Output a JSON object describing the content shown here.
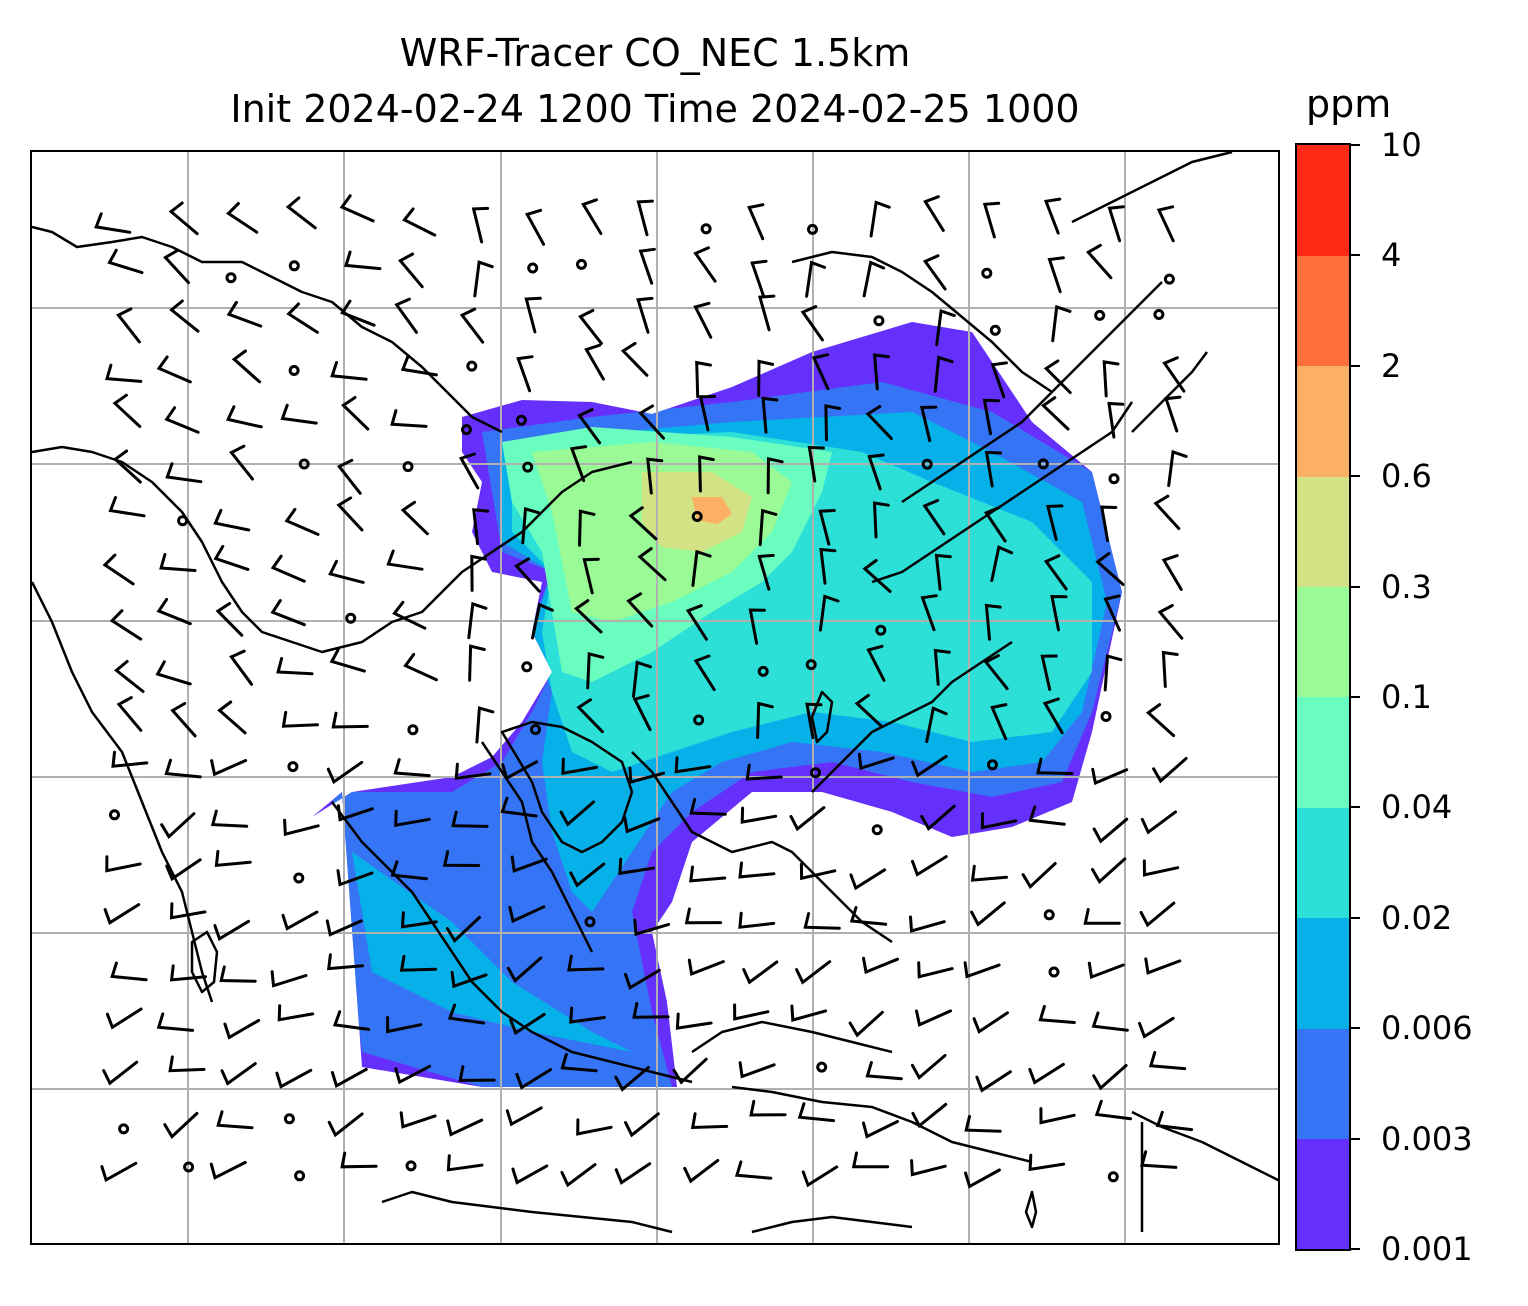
{
  "title": {
    "line1": "WRF-Tracer CO_NEC 1.5km",
    "line2": "Init 2024-02-24 1200 Time 2024-02-25 1000"
  },
  "colorbar": {
    "unit": "ppm",
    "levels": [
      "0.001",
      "0.003",
      "0.006",
      "0.02",
      "0.04",
      "0.1",
      "0.3",
      "0.6",
      "2",
      "4",
      "10"
    ],
    "colors": [
      "#6530fb",
      "#3575f5",
      "#06b1e9",
      "#2cdfd7",
      "#6afdc0",
      "#9afb96",
      "#d2e284",
      "#fcb064",
      "#ff6f3a",
      "#ff2b16"
    ]
  },
  "map": {
    "gridlines": true,
    "grid_color": "#b0b0b0",
    "coast_color": "#000000"
  }
}
